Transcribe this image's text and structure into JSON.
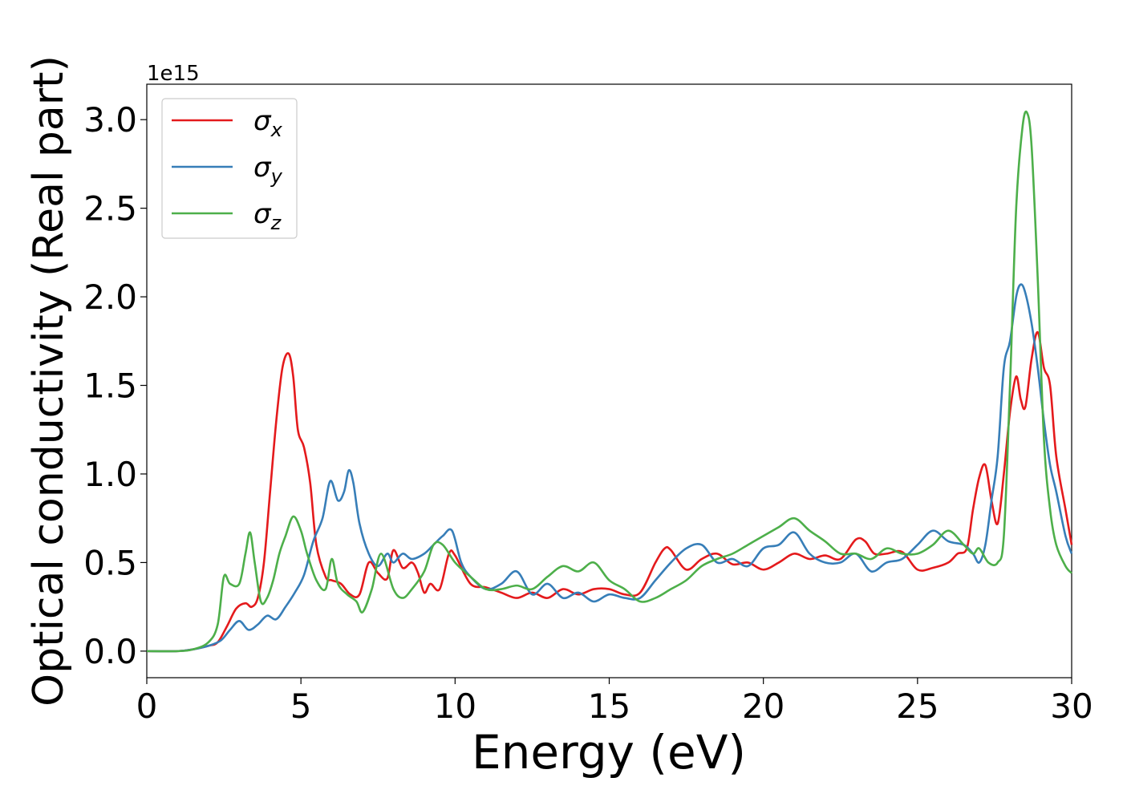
{
  "chart_data": {
    "type": "line",
    "title": "",
    "xlabel": "Energy (eV)",
    "ylabel": "Optical conductivity (Real part)",
    "offset_text": "1e15",
    "xlim": [
      0,
      30
    ],
    "ylim": [
      -0.15,
      3.2
    ],
    "xticks": [
      0,
      5,
      10,
      15,
      20,
      25,
      30
    ],
    "xtick_labels": [
      "0",
      "5",
      "10",
      "15",
      "20",
      "25",
      "30"
    ],
    "yticks": [
      0.0,
      0.5,
      1.0,
      1.5,
      2.0,
      2.5,
      3.0
    ],
    "ytick_labels": [
      "0.0",
      "0.5",
      "1.0",
      "1.5",
      "2.0",
      "2.5",
      "3.0"
    ],
    "grid": false,
    "legend_position": "top-left",
    "series": [
      {
        "name": "σ",
        "sub": "x",
        "color": "#e41a1c",
        "x": [
          0,
          1,
          1.5,
          2.0,
          2.3,
          2.6,
          2.9,
          3.2,
          3.4,
          3.6,
          3.8,
          4.0,
          4.2,
          4.4,
          4.6,
          4.75,
          4.9,
          5.1,
          5.3,
          5.5,
          5.8,
          6.0,
          6.3,
          6.6,
          6.9,
          7.2,
          7.5,
          7.8,
          8.0,
          8.3,
          8.6,
          8.8,
          9.0,
          9.2,
          9.5,
          9.8,
          10.0,
          10.5,
          11.0,
          11.5,
          12.0,
          12.5,
          13.0,
          13.5,
          14.0,
          14.5,
          15.0,
          15.5,
          16.0,
          16.5,
          16.8,
          17.0,
          17.5,
          18.0,
          18.5,
          19.0,
          19.5,
          20.0,
          20.5,
          21.0,
          21.5,
          22.0,
          22.5,
          23.0,
          23.3,
          23.6,
          24.0,
          24.5,
          25.0,
          25.5,
          26.0,
          26.3,
          26.6,
          26.8,
          27.0,
          27.2,
          27.4,
          27.6,
          27.8,
          28.0,
          28.2,
          28.35,
          28.5,
          28.7,
          28.9,
          29.1,
          29.3,
          29.5,
          29.8,
          30.0
        ],
        "y": [
          0.0,
          0.0,
          0.01,
          0.03,
          0.05,
          0.14,
          0.24,
          0.27,
          0.25,
          0.3,
          0.5,
          0.9,
          1.3,
          1.6,
          1.68,
          1.55,
          1.25,
          1.15,
          0.95,
          0.6,
          0.42,
          0.4,
          0.38,
          0.32,
          0.32,
          0.5,
          0.44,
          0.41,
          0.57,
          0.47,
          0.5,
          0.44,
          0.33,
          0.38,
          0.35,
          0.55,
          0.54,
          0.38,
          0.36,
          0.33,
          0.3,
          0.33,
          0.3,
          0.35,
          0.32,
          0.35,
          0.35,
          0.32,
          0.33,
          0.5,
          0.58,
          0.57,
          0.46,
          0.52,
          0.55,
          0.49,
          0.5,
          0.46,
          0.5,
          0.55,
          0.52,
          0.54,
          0.52,
          0.63,
          0.62,
          0.55,
          0.55,
          0.56,
          0.46,
          0.47,
          0.5,
          0.55,
          0.58,
          0.8,
          0.98,
          1.05,
          0.85,
          0.72,
          1.0,
          1.35,
          1.55,
          1.42,
          1.38,
          1.65,
          1.8,
          1.6,
          1.5,
          1.1,
          0.8,
          0.6
        ]
      },
      {
        "name": "σ",
        "sub": "y",
        "color": "#377eb8",
        "x": [
          0,
          1,
          1.5,
          2.0,
          2.4,
          2.7,
          3.0,
          3.3,
          3.6,
          3.9,
          4.2,
          4.5,
          4.8,
          5.1,
          5.4,
          5.7,
          5.95,
          6.2,
          6.4,
          6.55,
          6.7,
          6.9,
          7.2,
          7.5,
          7.8,
          8.0,
          8.3,
          8.6,
          9.0,
          9.3,
          9.6,
          9.9,
          10.2,
          10.5,
          11.0,
          11.5,
          12.0,
          12.5,
          13.0,
          13.5,
          14.0,
          14.5,
          15.0,
          15.5,
          16.0,
          16.5,
          17.0,
          17.5,
          18.0,
          18.5,
          19.0,
          19.5,
          20.0,
          20.5,
          21.0,
          21.5,
          22.0,
          22.5,
          23.0,
          23.5,
          24.0,
          24.5,
          25.0,
          25.5,
          26.0,
          26.5,
          26.8,
          27.0,
          27.2,
          27.4,
          27.6,
          27.8,
          28.0,
          28.2,
          28.35,
          28.5,
          28.7,
          28.9,
          29.1,
          29.3,
          29.5,
          29.8,
          30.0
        ],
        "y": [
          0.0,
          0.0,
          0.01,
          0.03,
          0.06,
          0.12,
          0.17,
          0.12,
          0.15,
          0.2,
          0.18,
          0.25,
          0.33,
          0.43,
          0.62,
          0.75,
          0.96,
          0.85,
          0.9,
          1.02,
          0.95,
          0.72,
          0.55,
          0.48,
          0.55,
          0.5,
          0.55,
          0.52,
          0.55,
          0.6,
          0.65,
          0.68,
          0.5,
          0.42,
          0.35,
          0.38,
          0.45,
          0.32,
          0.38,
          0.3,
          0.33,
          0.28,
          0.32,
          0.3,
          0.3,
          0.4,
          0.5,
          0.58,
          0.6,
          0.5,
          0.52,
          0.48,
          0.58,
          0.6,
          0.67,
          0.55,
          0.5,
          0.5,
          0.55,
          0.45,
          0.5,
          0.52,
          0.6,
          0.68,
          0.62,
          0.6,
          0.55,
          0.5,
          0.6,
          0.85,
          1.1,
          1.6,
          1.75,
          2.0,
          2.07,
          2.02,
          1.85,
          1.6,
          1.3,
          1.05,
          0.9,
          0.65,
          0.55
        ]
      },
      {
        "name": "σ",
        "sub": "z",
        "color": "#4daf4a",
        "x": [
          0,
          1,
          1.5,
          2.0,
          2.3,
          2.5,
          2.7,
          3.0,
          3.2,
          3.35,
          3.5,
          3.7,
          3.9,
          4.1,
          4.3,
          4.5,
          4.75,
          5.0,
          5.2,
          5.5,
          5.8,
          6.0,
          6.2,
          6.5,
          6.8,
          7.0,
          7.3,
          7.6,
          8.0,
          8.3,
          8.6,
          9.0,
          9.3,
          9.6,
          10.0,
          10.5,
          11.0,
          11.5,
          12.0,
          12.5,
          13.0,
          13.5,
          14.0,
          14.5,
          15.0,
          15.5,
          16.0,
          16.5,
          17.0,
          17.5,
          18.0,
          18.5,
          19.0,
          19.5,
          20.0,
          20.5,
          21.0,
          21.5,
          22.0,
          22.5,
          23.0,
          23.5,
          24.0,
          24.5,
          25.0,
          25.5,
          26.0,
          26.5,
          26.8,
          27.0,
          27.3,
          27.6,
          27.8,
          28.0,
          28.2,
          28.4,
          28.55,
          28.7,
          28.9,
          29.1,
          29.3,
          29.5,
          29.8,
          30.0
        ],
        "y": [
          0.0,
          0.0,
          0.01,
          0.05,
          0.15,
          0.42,
          0.38,
          0.38,
          0.55,
          0.67,
          0.5,
          0.28,
          0.3,
          0.4,
          0.55,
          0.65,
          0.76,
          0.68,
          0.55,
          0.4,
          0.35,
          0.52,
          0.38,
          0.32,
          0.28,
          0.22,
          0.35,
          0.55,
          0.35,
          0.3,
          0.35,
          0.45,
          0.6,
          0.6,
          0.5,
          0.42,
          0.35,
          0.35,
          0.37,
          0.35,
          0.42,
          0.48,
          0.45,
          0.5,
          0.4,
          0.35,
          0.28,
          0.3,
          0.35,
          0.4,
          0.48,
          0.52,
          0.55,
          0.6,
          0.65,
          0.7,
          0.75,
          0.68,
          0.62,
          0.55,
          0.55,
          0.52,
          0.58,
          0.55,
          0.55,
          0.6,
          0.68,
          0.6,
          0.55,
          0.58,
          0.5,
          0.5,
          0.65,
          1.5,
          2.5,
          2.95,
          3.04,
          2.85,
          2.1,
          1.2,
          0.8,
          0.6,
          0.48,
          0.44
        ]
      }
    ]
  }
}
